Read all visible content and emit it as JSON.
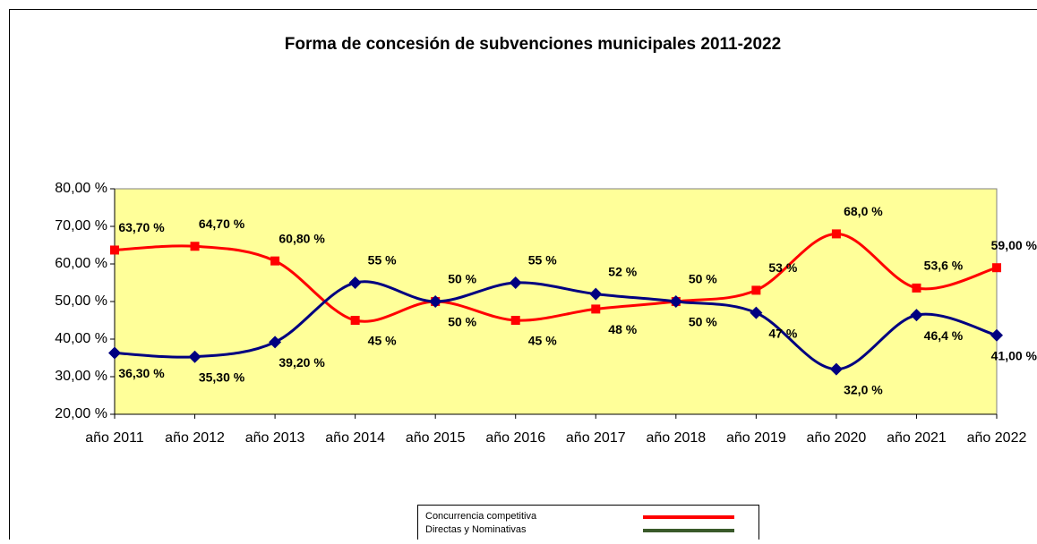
{
  "chart_data": {
    "type": "line",
    "title": "Forma de concesión de subvenciones municipales 2011-2022",
    "categories": [
      "año 2011",
      "año 2012",
      "año 2013",
      "año 2014",
      "año 2015",
      "año 2016",
      "año 2017",
      "año 2018",
      "año 2019",
      "año 2020",
      "año 2021",
      "año 2022"
    ],
    "ylim": [
      20,
      80
    ],
    "yticks": [
      {
        "value": 20,
        "label": "20,00 %"
      },
      {
        "value": 30,
        "label": "30,00 %"
      },
      {
        "value": 40,
        "label": "40,00 %"
      },
      {
        "value": 50,
        "label": "50,00 %"
      },
      {
        "value": 60,
        "label": "60,00 %"
      },
      {
        "value": 70,
        "label": "70,00 %"
      },
      {
        "value": 80,
        "label": "80,00 %"
      }
    ],
    "grid": false,
    "plot_background": "#ffff99",
    "series": [
      {
        "name": "Concurrencia competitiva",
        "color": "#ff0000",
        "legend_color": "#ff0000",
        "marker": "square",
        "values": [
          63.7,
          64.7,
          60.8,
          45,
          50,
          45,
          48,
          50,
          53,
          68,
          53.6,
          59
        ],
        "value_labels": [
          "63,70 %",
          "64,70 %",
          "60,80 %",
          "45 %",
          "50 %",
          "45 %",
          "48 %",
          "50 %",
          "53 %",
          "68,0 %",
          "53,6 %",
          "59,00 %"
        ]
      },
      {
        "name": "Directas y Nominativas",
        "color": "#000080",
        "legend_color": "#3a5a2a",
        "marker": "diamond",
        "values": [
          36.3,
          35.3,
          39.2,
          55,
          50,
          55,
          52,
          50,
          47,
          32,
          46.4,
          41
        ],
        "value_labels": [
          "36,30 %",
          "35,30 %",
          "39,20 %",
          "55 %",
          "50 %",
          "55 %",
          "52 %",
          "50 %",
          "47 %",
          "32,0 %",
          "46,4 %",
          "41,00 %"
        ]
      }
    ]
  }
}
